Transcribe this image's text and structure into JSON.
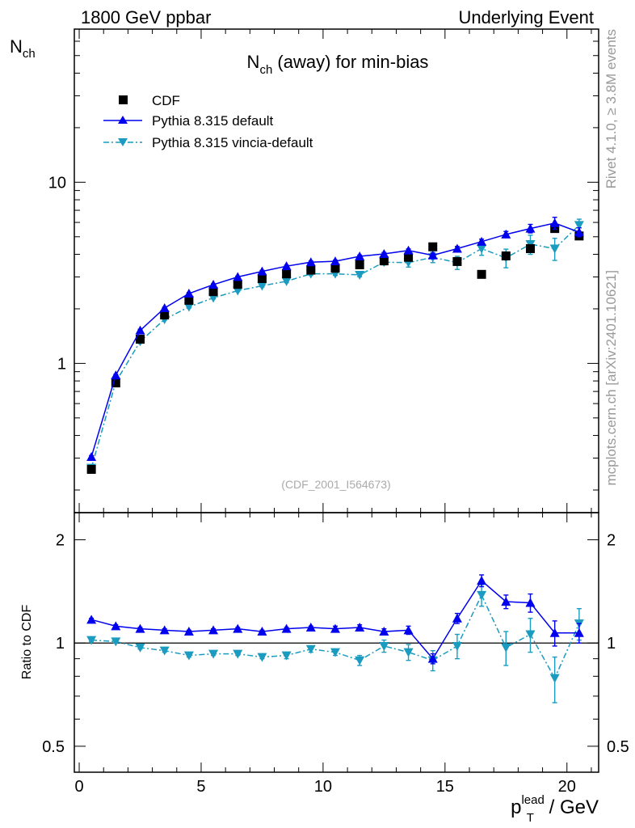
{
  "header": {
    "left": "1800 GeV ppbar",
    "right": "Underlying Event"
  },
  "side_labels": {
    "rivet": "Rivet 4.1.0, ≥ 3.8M events",
    "mcplots": "mcplots.cern.ch [arXiv:2401.10621]"
  },
  "colors": {
    "cdf": "#000000",
    "pythia_default": "#0000ee",
    "vincia": "#1a9bbf"
  },
  "chart_data": [
    {
      "type": "scatter",
      "panel": "main",
      "title_main": "N",
      "title_sub": "ch",
      "title_rest": " (away) for min-bias",
      "ylabel_main": "N",
      "ylabel_sub": "ch",
      "yscale": "log",
      "xlim": [
        -0.2,
        21.3
      ],
      "ylim": [
        0.15,
        70
      ],
      "y_tick_labels": [
        "1",
        "10"
      ],
      "y_tick_values": [
        1,
        10
      ],
      "watermark": "(CDF_2001_I564673)",
      "legend_position": "top-left",
      "x": [
        0.5,
        1.5,
        2.5,
        3.5,
        4.5,
        5.5,
        6.5,
        7.5,
        8.5,
        9.5,
        10.5,
        11.5,
        12.5,
        13.5,
        14.5,
        15.5,
        16.5,
        17.5,
        18.5,
        19.5,
        20.5
      ],
      "series": [
        {
          "name": "CDF",
          "style": "data-square",
          "values": [
            0.26,
            0.78,
            1.36,
            1.85,
            2.23,
            2.49,
            2.73,
            2.94,
            3.12,
            3.27,
            3.35,
            3.5,
            3.68,
            3.85,
            4.4,
            3.65,
            3.1,
            3.92,
            4.3,
            5.55,
            5.05
          ]
        },
        {
          "name": "Pythia 8.315 default",
          "style": "solid-triangle-up",
          "values": [
            0.305,
            0.86,
            1.52,
            2.02,
            2.43,
            2.72,
            3.0,
            3.22,
            3.44,
            3.62,
            3.66,
            3.9,
            4.02,
            4.2,
            3.95,
            4.3,
            4.7,
            5.15,
            5.55,
            5.95,
            5.3
          ],
          "errors": [
            0.005,
            0.01,
            0.02,
            0.02,
            0.03,
            0.03,
            0.03,
            0.04,
            0.04,
            0.05,
            0.05,
            0.06,
            0.07,
            0.08,
            0.1,
            0.12,
            0.15,
            0.2,
            0.3,
            0.45,
            0.3
          ]
        },
        {
          "name": "Pythia 8.315 vincia-default",
          "style": "dashdot-triangle-down",
          "values": [
            0.265,
            0.79,
            1.32,
            1.75,
            2.05,
            2.3,
            2.52,
            2.68,
            2.84,
            3.12,
            3.12,
            3.08,
            3.62,
            3.6,
            3.85,
            3.6,
            4.3,
            3.82,
            4.55,
            4.3,
            5.8
          ],
          "errors": [
            0.005,
            0.01,
            0.02,
            0.02,
            0.03,
            0.03,
            0.03,
            0.04,
            0.05,
            0.06,
            0.06,
            0.07,
            0.12,
            0.2,
            0.25,
            0.3,
            0.35,
            0.45,
            0.55,
            0.6,
            0.45
          ]
        }
      ]
    },
    {
      "type": "scatter",
      "panel": "ratio",
      "ylabel": "Ratio to CDF",
      "yscale": "log",
      "xlabel_main": "p",
      "xlabel_sub": "T",
      "xlabel_sup": "lead",
      "xlabel_rest": " / GeV",
      "xlim": [
        -0.2,
        21.3
      ],
      "ylim": [
        0.42,
        2.4
      ],
      "reference_line": 1,
      "x_tick_labels": [
        "0",
        "5",
        "10",
        "15",
        "20"
      ],
      "x_tick_values": [
        0,
        5,
        10,
        15,
        20
      ],
      "y_tick_labels": [
        "0.5",
        "1",
        "2"
      ],
      "y_tick_values": [
        0.5,
        1,
        2
      ],
      "x": [
        0.5,
        1.5,
        2.5,
        3.5,
        4.5,
        5.5,
        6.5,
        7.5,
        8.5,
        9.5,
        10.5,
        11.5,
        12.5,
        13.5,
        14.5,
        15.5,
        16.5,
        17.5,
        18.5,
        19.5,
        20.5
      ],
      "series": [
        {
          "name": "Pythia 8.315 default / CDF",
          "style": "solid-triangle-up",
          "values": [
            1.17,
            1.12,
            1.1,
            1.09,
            1.08,
            1.09,
            1.1,
            1.08,
            1.1,
            1.11,
            1.1,
            1.11,
            1.08,
            1.09,
            0.9,
            1.18,
            1.52,
            1.32,
            1.31,
            1.07,
            1.07
          ],
          "errors": [
            0.01,
            0.01,
            0.01,
            0.01,
            0.01,
            0.01,
            0.01,
            0.01,
            0.01,
            0.01,
            0.02,
            0.02,
            0.02,
            0.03,
            0.03,
            0.04,
            0.06,
            0.06,
            0.08,
            0.09,
            0.07
          ]
        },
        {
          "name": "Pythia 8.315 vincia-default / CDF",
          "style": "dashdot-triangle-down",
          "values": [
            1.02,
            1.01,
            0.97,
            0.95,
            0.92,
            0.93,
            0.93,
            0.91,
            0.92,
            0.96,
            0.94,
            0.89,
            0.98,
            0.94,
            0.89,
            0.98,
            1.38,
            0.97,
            1.06,
            0.79,
            1.14
          ],
          "errors": [
            0.01,
            0.01,
            0.01,
            0.01,
            0.01,
            0.01,
            0.01,
            0.01,
            0.02,
            0.02,
            0.02,
            0.03,
            0.04,
            0.05,
            0.06,
            0.08,
            0.1,
            0.11,
            0.12,
            0.12,
            0.12
          ]
        }
      ]
    }
  ]
}
